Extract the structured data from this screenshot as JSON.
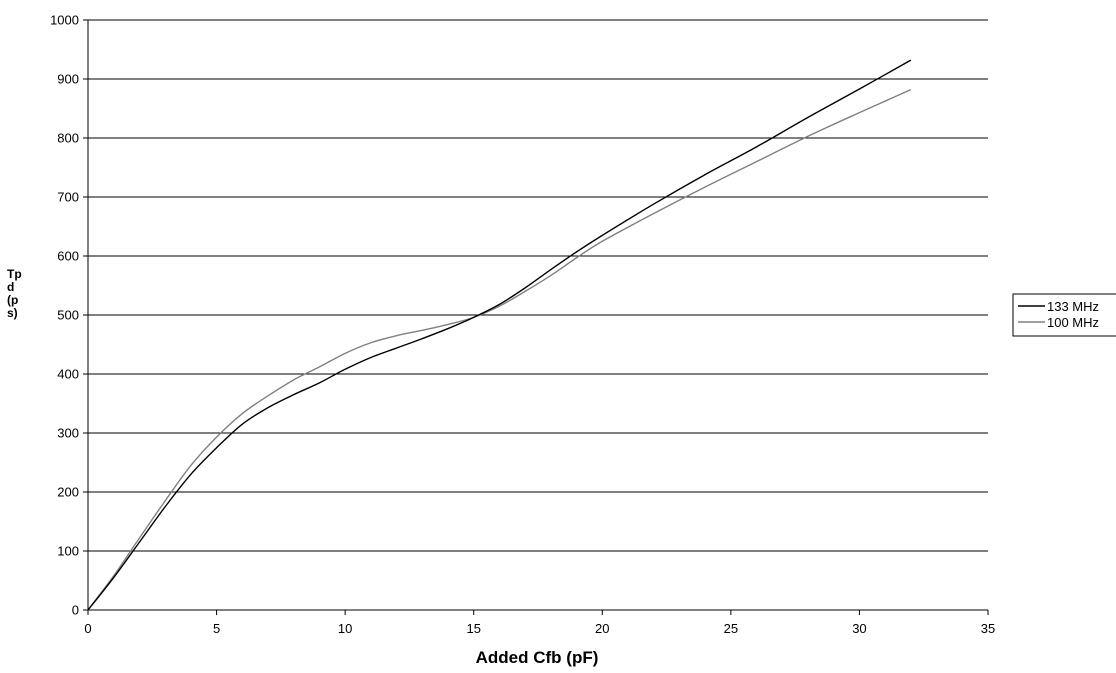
{
  "chart_data": {
    "type": "line",
    "title": "",
    "xlabel": "Added Cfb (pF)",
    "ylabel_lines": [
      "Tp",
      "d",
      "(p",
      "s)"
    ],
    "xlim": [
      0,
      35
    ],
    "ylim": [
      0,
      1000
    ],
    "xticks": [
      0,
      5,
      10,
      15,
      20,
      25,
      30,
      35
    ],
    "yticks": [
      0,
      100,
      200,
      300,
      400,
      500,
      600,
      700,
      800,
      900,
      1000
    ],
    "grid": "horizontal",
    "legend_position": "right",
    "series": [
      {
        "name": "133 MHz",
        "color": "#000000",
        "points": [
          [
            0,
            0
          ],
          [
            1,
            55
          ],
          [
            2,
            115
          ],
          [
            3,
            175
          ],
          [
            4,
            230
          ],
          [
            5,
            275
          ],
          [
            6,
            315
          ],
          [
            7,
            343
          ],
          [
            8,
            365
          ],
          [
            9,
            385
          ],
          [
            10,
            408
          ],
          [
            11,
            428
          ],
          [
            12,
            444
          ],
          [
            13,
            460
          ],
          [
            14,
            477
          ],
          [
            15,
            496
          ],
          [
            16,
            518
          ],
          [
            17,
            546
          ],
          [
            18,
            577
          ],
          [
            19,
            607
          ],
          [
            20,
            635
          ],
          [
            22,
            688
          ],
          [
            24,
            738
          ],
          [
            26,
            785
          ],
          [
            28,
            835
          ],
          [
            30,
            883
          ],
          [
            32,
            932
          ]
        ]
      },
      {
        "name": "100 MHz",
        "color": "#808080",
        "points": [
          [
            0,
            0
          ],
          [
            1,
            58
          ],
          [
            2,
            122
          ],
          [
            3,
            185
          ],
          [
            4,
            245
          ],
          [
            5,
            293
          ],
          [
            6,
            333
          ],
          [
            7,
            363
          ],
          [
            8,
            390
          ],
          [
            9,
            412
          ],
          [
            10,
            435
          ],
          [
            11,
            453
          ],
          [
            12,
            465
          ],
          [
            13,
            474
          ],
          [
            14,
            484
          ],
          [
            15,
            496
          ],
          [
            16,
            515
          ],
          [
            17,
            540
          ],
          [
            18,
            567
          ],
          [
            19,
            597
          ],
          [
            20,
            625
          ],
          [
            22,
            672
          ],
          [
            24,
            717
          ],
          [
            26,
            760
          ],
          [
            28,
            803
          ],
          [
            30,
            843
          ],
          [
            32,
            882
          ]
        ]
      }
    ]
  }
}
